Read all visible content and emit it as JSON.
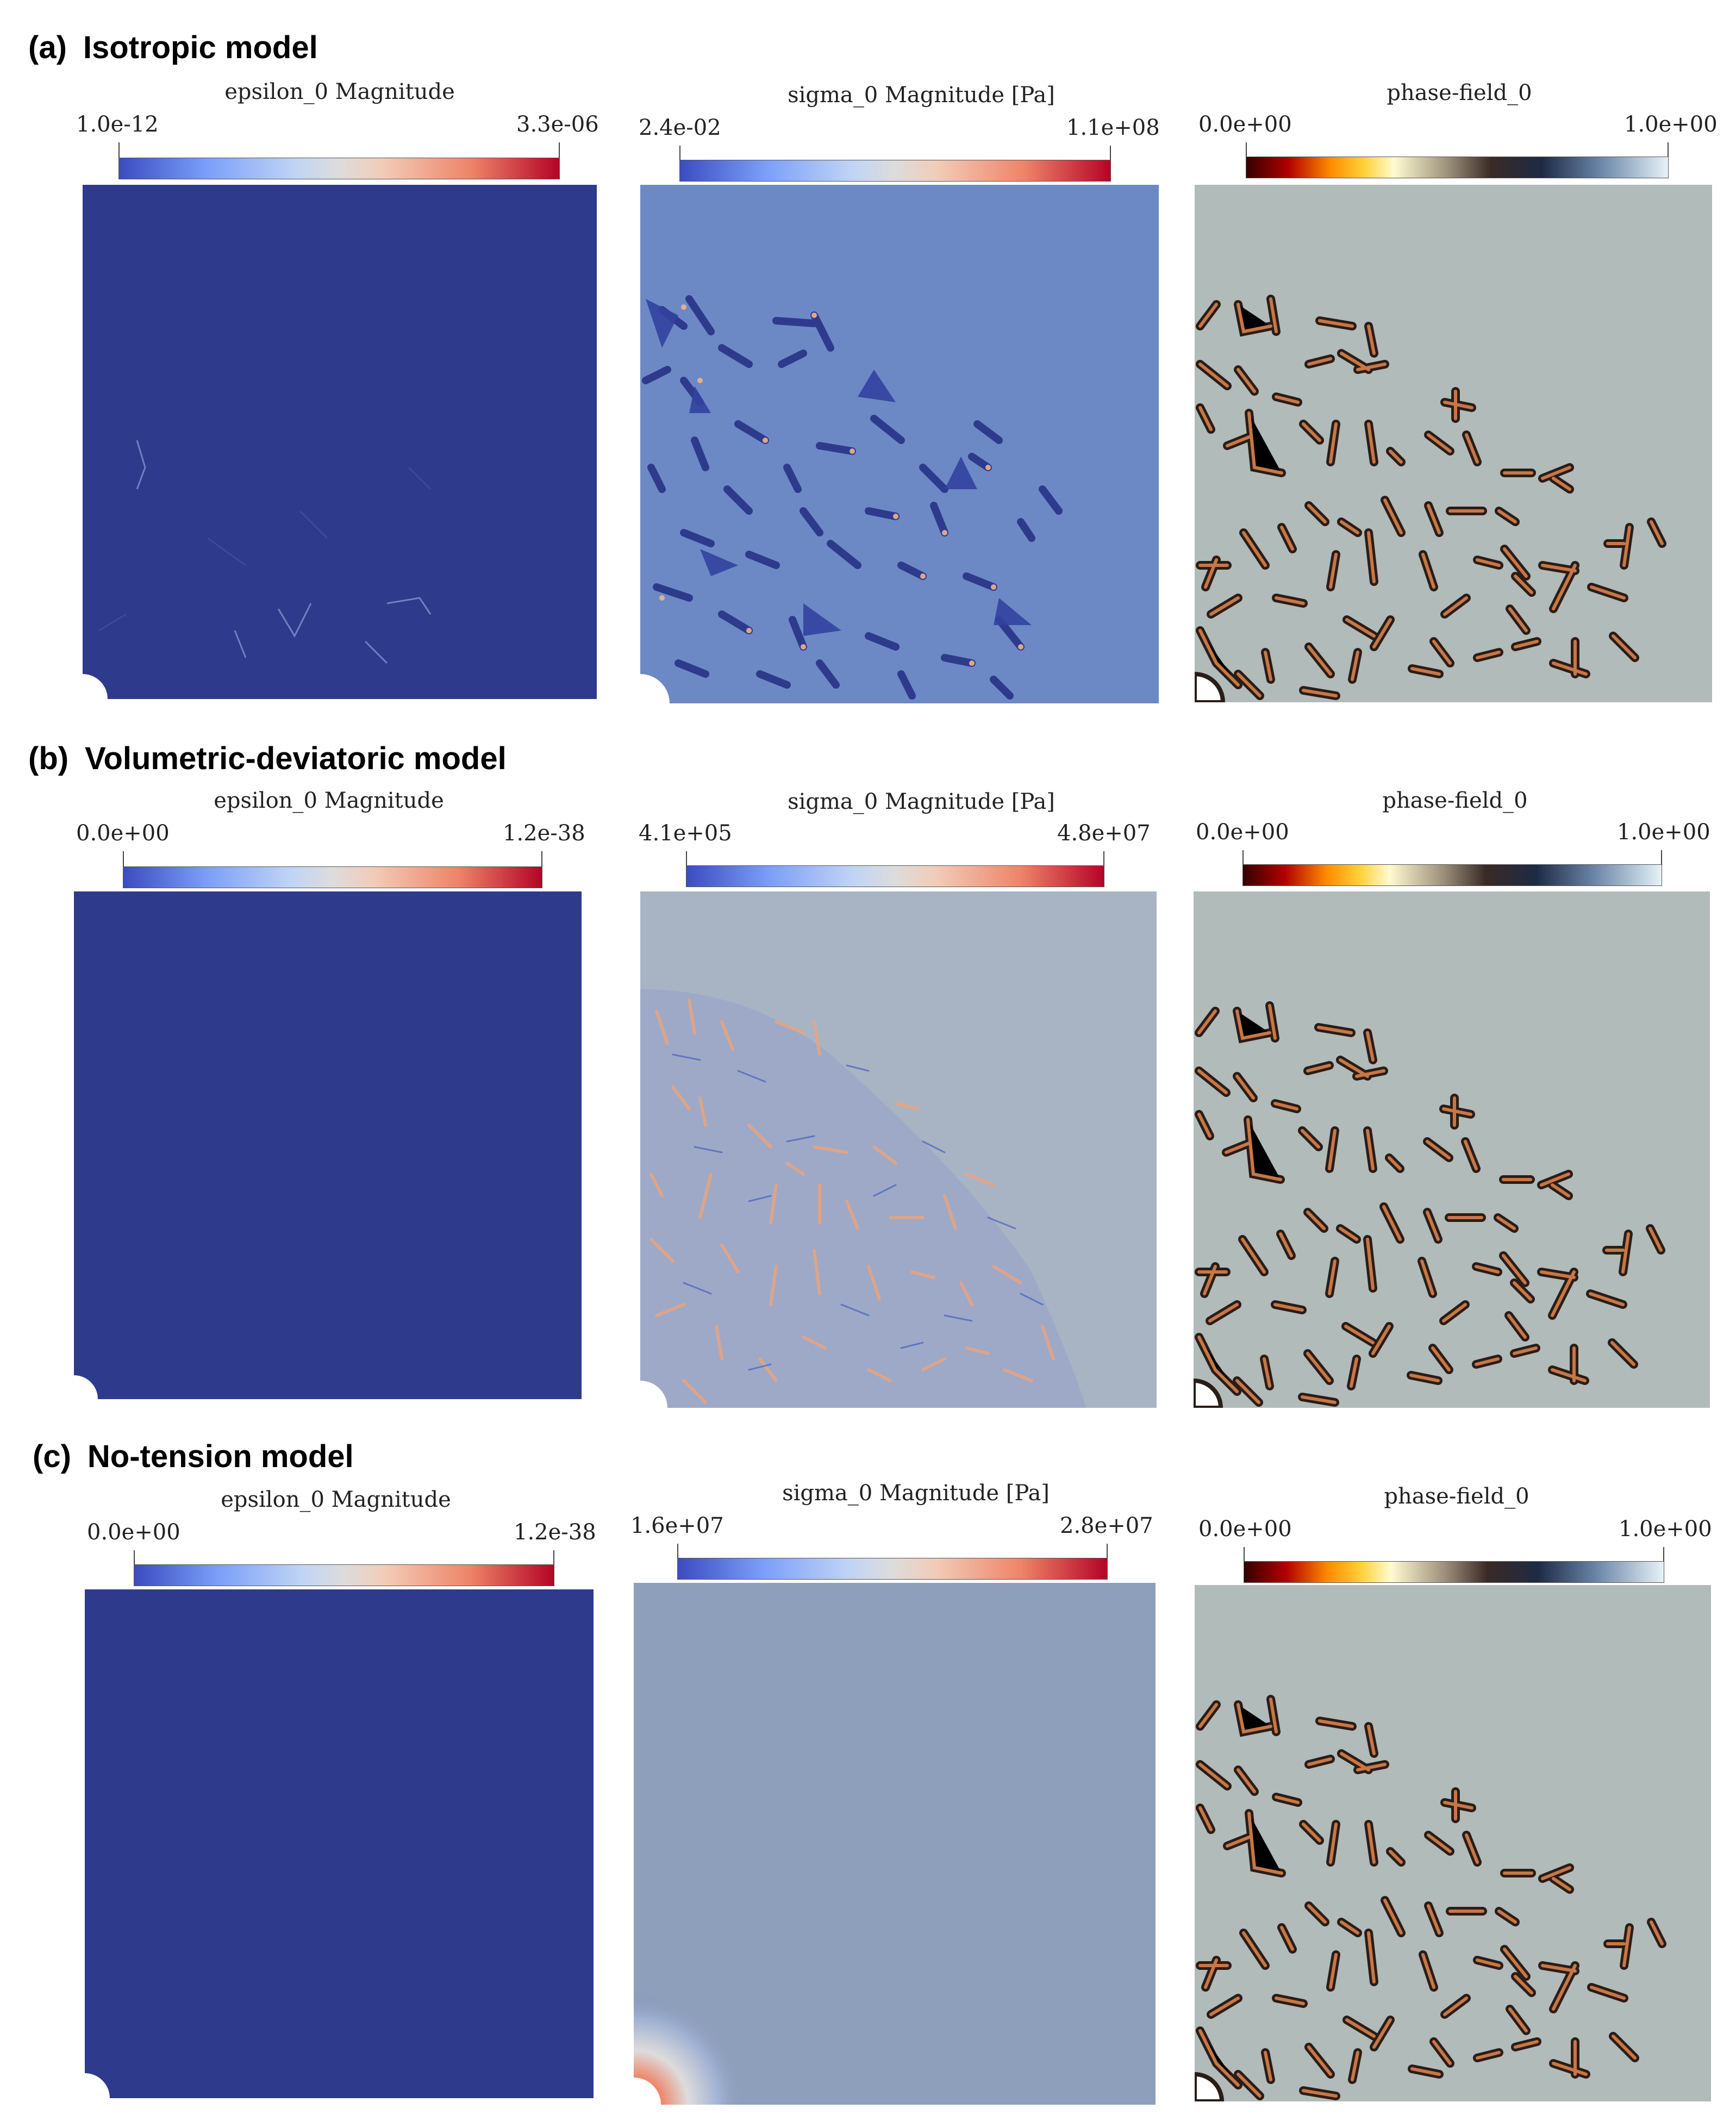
{
  "rows": [
    {
      "tag": "(a)",
      "title": "Isotropic model",
      "panels": [
        {
          "label": "epsilon_0 Magnitude",
          "min": "1.0e-12",
          "max": "3.3e-06"
        },
        {
          "label": "sigma_0  Magnitude [Pa]",
          "min": "2.4e-02",
          "max": "1.1e+08"
        },
        {
          "label": "phase-field_0",
          "min": "0.0e+00",
          "max": "1.0e+00"
        }
      ]
    },
    {
      "tag": "(b)",
      "title": "Volumetric-deviatoric model",
      "panels": [
        {
          "label": "epsilon_0  Magnitude",
          "min": "0.0e+00",
          "max": "1.2e-38"
        },
        {
          "label": "sigma_0 Magnitude  [Pa]",
          "min": "4.1e+05",
          "max": "4.8e+07"
        },
        {
          "label": "phase-field_0",
          "min": "0.0e+00",
          "max": "1.0e+00"
        }
      ]
    },
    {
      "tag": "(c)",
      "title": "No-tension model",
      "panels": [
        {
          "label": "epsilon_0  Magnitude",
          "min": "0.0e+00",
          "max": "1.2e-38"
        },
        {
          "label": "sigma_0 Magnitude  [Pa]",
          "min": "1.6e+07",
          "max": "2.8e+07"
        },
        {
          "label": "phase-field_0",
          "min": "0.0e+00",
          "max": "1.0e+00"
        }
      ]
    }
  ],
  "colors": {
    "strain_field": "#2e3a8c",
    "stress_a_field": "#6c89c5",
    "stress_b_field": "#a8b4c4",
    "stress_c_field": "#8e9fbb",
    "phase_field_background": "#b1bbb9",
    "crack_color": "#c87745"
  }
}
